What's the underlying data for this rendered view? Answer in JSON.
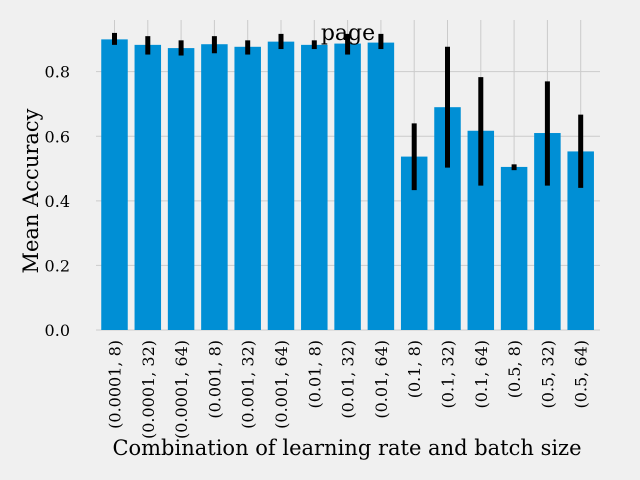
{
  "chart_data": {
    "type": "bar",
    "title": "page",
    "xlabel": "Combination of learning rate and batch size",
    "ylabel": "Mean Accuracy",
    "ylim": [
      0,
      0.96
    ],
    "yticks": [
      0.0,
      0.2,
      0.4,
      0.6,
      0.8
    ],
    "ytick_labels": [
      "0.0",
      "0.2",
      "0.4",
      "0.6",
      "0.8"
    ],
    "grid": true,
    "categories": [
      "(0.0001, 8)",
      "(0.0001, 32)",
      "(0.0001, 64)",
      "(0.001, 8)",
      "(0.001, 32)",
      "(0.001, 64)",
      "(0.01, 8)",
      "(0.01, 32)",
      "(0.01, 64)",
      "(0.1, 8)",
      "(0.1, 32)",
      "(0.1, 64)",
      "(0.5, 8)",
      "(0.5, 32)",
      "(0.5, 64)"
    ],
    "values": [
      0.9,
      0.883,
      0.873,
      0.885,
      0.877,
      0.893,
      0.883,
      0.887,
      0.89,
      0.537,
      0.69,
      0.617,
      0.505,
      0.61,
      0.553
    ],
    "error_low": [
      0.883,
      0.853,
      0.85,
      0.857,
      0.853,
      0.87,
      0.87,
      0.853,
      0.87,
      0.433,
      0.503,
      0.447,
      0.495,
      0.447,
      0.44
    ],
    "error_high": [
      0.92,
      0.91,
      0.897,
      0.91,
      0.897,
      0.917,
      0.897,
      0.917,
      0.917,
      0.64,
      0.877,
      0.783,
      0.513,
      0.77,
      0.667
    ],
    "colors": {
      "bar": "#008fd5",
      "error": "#000000",
      "grid": "#cbcbcb",
      "background": "#f0f0f0"
    }
  }
}
